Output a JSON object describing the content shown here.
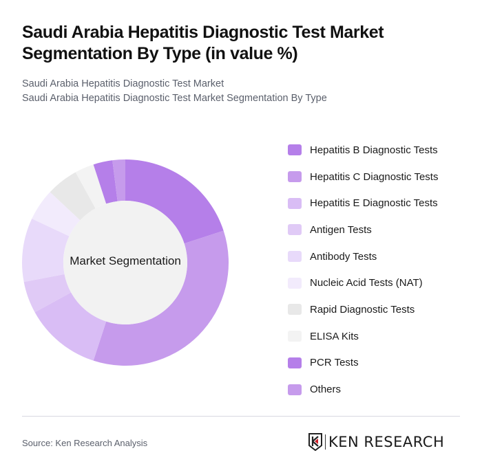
{
  "header": {
    "title": "Saudi Arabia Hepatitis Diagnostic Test Market Segmentation By Type (in value %)",
    "subtitle_1": "Saudi Arabia Hepatitis Diagnostic Test Market",
    "subtitle_2": "Saudi Arabia Hepatitis Diagnostic Test Market Segmentation By Type"
  },
  "chart_data": {
    "type": "pie",
    "variant": "donut",
    "title": "Saudi Arabia Hepatitis Diagnostic Test Market Segmentation By Type (in value %)",
    "center_label": "Market Segmentation",
    "categories": [
      "Hepatitis B Diagnostic Tests",
      "Hepatitis C Diagnostic Tests",
      "Hepatitis E Diagnostic Tests",
      "Antigen Tests",
      "Antibody Tests",
      "Nucleic Acid Tests (NAT)",
      "Rapid Diagnostic Tests",
      "ELISA Kits",
      "PCR Tests",
      "Others"
    ],
    "values": [
      20,
      35,
      12,
      5,
      10,
      5,
      5,
      3,
      3,
      2
    ],
    "colors": [
      "#b57fe9",
      "#c69bec",
      "#d9bdf5",
      "#e0caf6",
      "#e8dafa",
      "#f2ebfc",
      "#e8e8e8",
      "#f3f3f3",
      "#b57fe9",
      "#c69bec"
    ],
    "legend_position": "right"
  },
  "legend": {
    "items": [
      {
        "label": "Hepatitis B Diagnostic Tests",
        "color": "#b57fe9"
      },
      {
        "label": "Hepatitis C Diagnostic Tests",
        "color": "#c69bec"
      },
      {
        "label": "Hepatitis E Diagnostic Tests",
        "color": "#d9bdf5"
      },
      {
        "label": "Antigen Tests",
        "color": "#e0caf6"
      },
      {
        "label": "Antibody Tests",
        "color": "#e8dafa"
      },
      {
        "label": "Nucleic Acid Tests (NAT)",
        "color": "#f2ebfc"
      },
      {
        "label": "Rapid Diagnostic Tests",
        "color": "#e8e8e8"
      },
      {
        "label": "ELISA Kits",
        "color": "#f3f3f3"
      },
      {
        "label": "PCR Tests",
        "color": "#b57fe9"
      },
      {
        "label": "Others",
        "color": "#c69bec"
      }
    ]
  },
  "footer": {
    "source": "Source: Ken Research Analysis",
    "logo_text": "KEN RESEARCH"
  }
}
